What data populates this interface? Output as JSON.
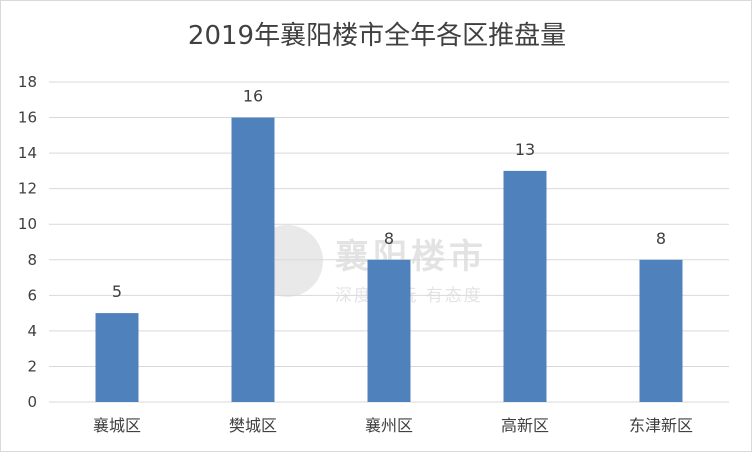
{
  "chart_data": {
    "type": "bar",
    "title": "2019年襄阳楼市全年各区推盘量",
    "categories": [
      "襄城区",
      "樊城区",
      "襄州区",
      "高新区",
      "东津新区"
    ],
    "values": [
      5,
      16,
      8,
      13,
      8
    ],
    "ylim": [
      0,
      18
    ],
    "yticks": [
      0,
      2,
      4,
      6,
      8,
      10,
      12,
      14,
      16,
      18
    ],
    "xlabel": "",
    "ylabel": "",
    "grid": true,
    "legend": "none",
    "bar_color": "#4f81bd",
    "grid_color": "#d9d9d9"
  },
  "watermark": {
    "title": "襄阳楼市",
    "slogan": "深度 好玩 有态度"
  }
}
